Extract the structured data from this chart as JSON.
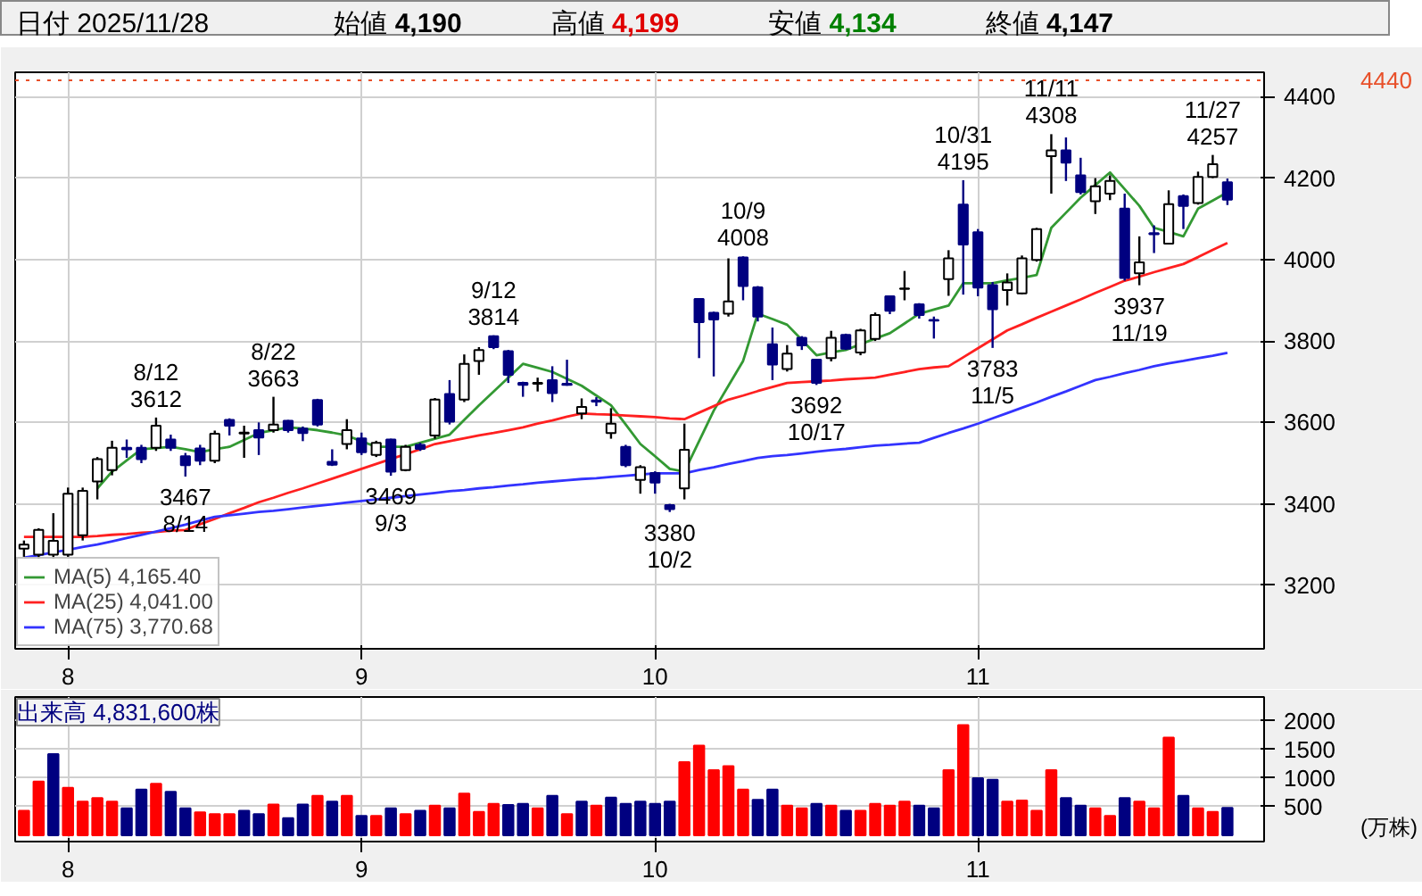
{
  "chart_data": [
    {
      "type": "candlestick",
      "title": "日付 2025/11/28",
      "annotations": [
        "始値 4,190",
        "高値 4,199",
        "安値 4,134",
        "終値 4,147",
        {
          "text": "8/12\n3612",
          "y": 3612
        },
        {
          "text": "3467\n8/14",
          "y": 3467
        },
        {
          "text": "8/22\n3663",
          "y": 3663
        },
        {
          "text": "3469\n9/3",
          "y": 3469
        },
        {
          "text": "9/12\n3814",
          "y": 3814
        },
        {
          "text": "3380\n10/2",
          "y": 3380
        },
        {
          "text": "10/9\n4008",
          "y": 4008
        },
        {
          "text": "3692\n10/17",
          "y": 3692
        },
        {
          "text": "10/31\n4195",
          "y": 4195
        },
        {
          "text": "3783\n11/5",
          "y": 3783
        },
        {
          "text": "11/11\n4308",
          "y": 4308
        },
        {
          "text": "3937\n11/19",
          "y": 3937
        },
        {
          "text": "11/27\n4257",
          "y": 4257
        }
      ],
      "categories": [
        null,
        null,
        null,
        "8",
        null,
        null,
        null,
        null,
        null,
        null,
        null,
        null,
        null,
        null,
        null,
        null,
        null,
        null,
        null,
        null,
        null,
        null,
        null,
        "9",
        null,
        null,
        null,
        null,
        null,
        null,
        null,
        null,
        null,
        null,
        null,
        null,
        null,
        null,
        null,
        null,
        null,
        null,
        null,
        "10",
        null,
        null,
        null,
        null,
        null,
        null,
        null,
        null,
        null,
        null,
        null,
        null,
        null,
        null,
        null,
        null,
        null,
        null,
        null,
        null,
        null,
        "11",
        null,
        null,
        null,
        null,
        null,
        null,
        null,
        null,
        null,
        null,
        null,
        null,
        null,
        null,
        null,
        null,
        null
      ],
      "ylim": [
        3044,
        4460
      ],
      "yticks": [
        3200,
        3400,
        3600,
        3800,
        4000,
        4200,
        4400
      ],
      "ohlc": [
        [
          3290,
          3310,
          3270,
          3300
        ],
        [
          3275,
          3340,
          3265,
          3336
        ],
        [
          3275,
          3377,
          3265,
          3309
        ],
        [
          3275,
          3440,
          3270,
          3425
        ],
        [
          3323,
          3440,
          3310,
          3432
        ],
        [
          3455,
          3515,
          3411,
          3510
        ],
        [
          3483,
          3555,
          3470,
          3538
        ],
        [
          3538,
          3558,
          3513,
          3534
        ],
        [
          3538,
          3545,
          3500,
          3510
        ],
        [
          3538,
          3612,
          3530,
          3592
        ],
        [
          3558,
          3570,
          3530,
          3538
        ],
        [
          3517,
          3525,
          3467,
          3495
        ],
        [
          3536,
          3545,
          3495,
          3506
        ],
        [
          3506,
          3580,
          3500,
          3572
        ],
        [
          3606,
          3610,
          3568,
          3592
        ],
        [
          3573,
          3592,
          3513,
          3575
        ],
        [
          3581,
          3600,
          3520,
          3563
        ],
        [
          3581,
          3663,
          3575,
          3595
        ],
        [
          3604,
          3606,
          3575,
          3581
        ],
        [
          3585,
          3590,
          3554,
          3574
        ],
        [
          3655,
          3658,
          3590,
          3595
        ],
        [
          3503,
          3534,
          3493,
          3496
        ],
        [
          3547,
          3608,
          3534,
          3581
        ],
        [
          3561,
          3575,
          3520,
          3527
        ],
        [
          3520,
          3555,
          3515,
          3550
        ],
        [
          3558,
          3560,
          3469,
          3479
        ],
        [
          3483,
          3545,
          3480,
          3540
        ],
        [
          3545,
          3550,
          3530,
          3535
        ],
        [
          3568,
          3660,
          3560,
          3656
        ],
        [
          3670,
          3704,
          3595,
          3602
        ],
        [
          3656,
          3767,
          3650,
          3744
        ],
        [
          3751,
          3785,
          3717,
          3778
        ],
        [
          3812,
          3814,
          3780,
          3785
        ],
        [
          3775,
          3778,
          3697,
          3717
        ],
        [
          3697,
          3700,
          3663,
          3692
        ],
        [
          3695,
          3710,
          3676,
          3697
        ],
        [
          3704,
          3738,
          3650,
          3672
        ],
        [
          3695,
          3754,
          3690,
          3692
        ],
        [
          3622,
          3659,
          3608,
          3638
        ],
        [
          3654,
          3662,
          3640,
          3651
        ],
        [
          3574,
          3635,
          3560,
          3597
        ],
        [
          3540,
          3545,
          3490,
          3495
        ],
        [
          3459,
          3495,
          3425,
          3490
        ],
        [
          3476,
          3480,
          3425,
          3452
        ],
        [
          3397,
          3400,
          3380,
          3387
        ],
        [
          3438,
          3597,
          3411,
          3533
        ],
        [
          3903,
          3905,
          3758,
          3846
        ],
        [
          3869,
          3872,
          3713,
          3853
        ],
        [
          3867,
          4003,
          3860,
          3897
        ],
        [
          4005,
          4008,
          3900,
          3935
        ],
        [
          3932,
          3935,
          3848,
          3860
        ],
        [
          3792,
          3833,
          3704,
          3742
        ],
        [
          3731,
          3790,
          3725,
          3769
        ],
        [
          3808,
          3812,
          3778,
          3789
        ],
        [
          3754,
          3756,
          3692,
          3697
        ],
        [
          3758,
          3825,
          3750,
          3808
        ],
        [
          3815,
          3818,
          3778,
          3781
        ],
        [
          3772,
          3830,
          3765,
          3826
        ],
        [
          3805,
          3870,
          3800,
          3864
        ],
        [
          3910,
          3912,
          3866,
          3874
        ],
        [
          3928,
          3972,
          3900,
          3929
        ],
        [
          3890,
          3893,
          3855,
          3864
        ],
        [
          3852,
          3860,
          3806,
          3850
        ],
        [
          3952,
          4023,
          3911,
          4003
        ],
        [
          4135,
          4195,
          3914,
          4037
        ],
        [
          4067,
          4075,
          3910,
          3931
        ],
        [
          3937,
          3945,
          3783,
          3878
        ],
        [
          3925,
          3966,
          3887,
          3944
        ],
        [
          3917,
          4010,
          3915,
          4003
        ],
        [
          3999,
          4078,
          3995,
          4075
        ],
        [
          4254,
          4308,
          4162,
          4268
        ],
        [
          4268,
          4300,
          4193,
          4238
        ],
        [
          4207,
          4250,
          4160,
          4166
        ],
        [
          4143,
          4200,
          4112,
          4180
        ],
        [
          4162,
          4207,
          4146,
          4193
        ],
        [
          4125,
          4162,
          3948,
          3955
        ],
        [
          3966,
          4057,
          3937,
          3993
        ],
        [
          4065,
          4084,
          4016,
          4062
        ],
        [
          4039,
          4170,
          4037,
          4136
        ],
        [
          4156,
          4160,
          4075,
          4132
        ],
        [
          4139,
          4216,
          4135,
          4203
        ],
        [
          4203,
          4257,
          4200,
          4234
        ],
        [
          4190,
          4199,
          4134,
          4147
        ]
      ],
      "colors": [
        "#ffffff",
        "#ffffff",
        "#ffffff",
        "#ffffff",
        "#ffffff",
        "#ffffff",
        "#ffffff",
        "#000080",
        "#000080",
        "#ffffff",
        "#000080",
        "#000080",
        "#000080",
        "#ffffff",
        "#000080",
        "#ffffff",
        "#000080",
        "#ffffff",
        "#000080",
        "#000080",
        "#000080",
        "#000080",
        "#ffffff",
        "#000080",
        "#ffffff",
        "#000080",
        "#ffffff",
        "#000080",
        "#ffffff",
        "#000080",
        "#ffffff",
        "#ffffff",
        "#000080",
        "#000080",
        "#000080",
        "#ffffff",
        "#000080",
        "#000080",
        "#ffffff",
        "#000080",
        "#ffffff",
        "#000080",
        "#ffffff",
        "#000080",
        "#000080",
        "#ffffff",
        "#000080",
        "#000080",
        "#ffffff",
        "#000080",
        "#000080",
        "#000080",
        "#ffffff",
        "#000080",
        "#000080",
        "#ffffff",
        "#000080",
        "#ffffff",
        "#ffffff",
        "#000080",
        "#ffffff",
        "#000080",
        "#000080",
        "#ffffff",
        "#000080",
        "#000080",
        "#000080",
        "#ffffff",
        "#ffffff",
        "#ffffff",
        "#ffffff",
        "#000080",
        "#000080",
        "#ffffff",
        "#ffffff",
        "#000080",
        "#ffffff",
        "#000080",
        "#ffffff",
        "#000080",
        "#ffffff",
        "#ffffff",
        "#000080"
      ],
      "series": [
        {
          "type": "line",
          "name": "MA(5) 4,165.40",
          "color": "#339933",
          "values": [
            null,
            null,
            null,
            null,
            null,
            3438,
            3479,
            3507,
            3534,
            3537,
            3540,
            3534,
            3527,
            3534,
            3540,
            3557,
            3574,
            3581,
            3588,
            3585,
            3581,
            3575,
            3568,
            3554,
            3540,
            3540,
            3540,
            3550,
            3560,
            3570,
            3606,
            3642,
            3676,
            3710,
            3744,
            3734,
            3724,
            3707,
            3690,
            3666,
            3642,
            3595,
            3547,
            3517,
            3486,
            3479,
            3554,
            3629,
            3690,
            3751,
            3867,
            3854,
            3840,
            3803,
            3765,
            3772,
            3778,
            3792,
            3806,
            3819,
            3843,
            3867,
            3877,
            3887,
            3942,
            3942,
            3942,
            3949,
            3955,
            3962,
            4078,
            4115,
            4152,
            4183,
            4214,
            4173,
            4132,
            4078,
            4068,
            4057,
            4125,
            4145,
            4165
          ]
        },
        {
          "type": "line",
          "name": "MA(25) 4,041.00",
          "color": "#ff2020",
          "values": [
            3319,
            3319,
            3319,
            3319,
            3319,
            3321,
            3324,
            3326,
            3329,
            3331,
            3334,
            3336,
            3350,
            3363,
            3377,
            3390,
            3404,
            3415,
            3427,
            3438,
            3450,
            3462,
            3474,
            3486,
            3498,
            3510,
            3522,
            3534,
            3547,
            3554,
            3561,
            3568,
            3574,
            3581,
            3588,
            3597,
            3605,
            3614,
            3622,
            3620,
            3619,
            3617,
            3615,
            3613,
            3610,
            3608,
            3624,
            3640,
            3656,
            3666,
            3677,
            3687,
            3697,
            3699,
            3701,
            3703,
            3706,
            3708,
            3710,
            3717,
            3724,
            3731,
            3735,
            3738,
            3760,
            3782,
            3804,
            3826,
            3841,
            3857,
            3872,
            3887,
            3902,
            3918,
            3933,
            3948,
            3958,
            3969,
            3979,
            3989,
            4006,
            4024,
            4041
          ]
        },
        {
          "type": "line",
          "name": "MA(75) 3,770.68",
          "color": "#3333ff",
          "values": [
            3268,
            3274,
            3281,
            3287,
            3294,
            3300,
            3308,
            3316,
            3324,
            3332,
            3340,
            3349,
            3359,
            3368,
            3372,
            3376,
            3380,
            3383,
            3387,
            3391,
            3395,
            3399,
            3403,
            3407,
            3411,
            3415,
            3419,
            3423,
            3427,
            3431,
            3434,
            3438,
            3441,
            3445,
            3448,
            3452,
            3455,
            3458,
            3461,
            3463,
            3466,
            3469,
            3472,
            3475,
            3475,
            3475,
            3483,
            3490,
            3498,
            3505,
            3513,
            3517,
            3520,
            3524,
            3528,
            3532,
            3535,
            3539,
            3543,
            3545,
            3548,
            3550,
            3562,
            3574,
            3585,
            3597,
            3610,
            3623,
            3636,
            3649,
            3663,
            3676,
            3690,
            3704,
            3712,
            3721,
            3729,
            3738,
            3745,
            3751,
            3758,
            3764,
            3771
          ]
        }
      ],
      "ref_lines": [
        {
          "axis": "y",
          "value": 4440,
          "label": "4440",
          "color": "#e8502a",
          "line_style": "dotted"
        }
      ],
      "grid": true,
      "legend": "bottom left"
    },
    {
      "type": "bar",
      "ylabel": "(万株)",
      "annotations": [
        "出来高 4,831,600株"
      ],
      "categories": [
        null,
        null,
        null,
        "8",
        null,
        null,
        null,
        null,
        null,
        null,
        null,
        null,
        null,
        null,
        null,
        null,
        null,
        null,
        null,
        null,
        null,
        null,
        null,
        "9",
        null,
        null,
        null,
        null,
        null,
        null,
        null,
        null,
        null,
        null,
        null,
        null,
        null,
        null,
        null,
        null,
        null,
        null,
        null,
        "10",
        null,
        null,
        null,
        null,
        null,
        null,
        null,
        null,
        null,
        null,
        null,
        null,
        null,
        null,
        null,
        null,
        null,
        null,
        null,
        null,
        null,
        "11",
        null,
        null,
        null,
        null,
        null,
        null,
        null,
        null,
        null,
        null,
        null,
        null,
        null,
        null,
        null,
        null,
        null
      ],
      "ylim": [
        -110,
        2420
      ],
      "yticks": [
        500,
        1000,
        1500,
        2000
      ],
      "values": [
        430,
        940,
        1420,
        830,
        590,
        650,
        590,
        470,
        800,
        900,
        760,
        470,
        400,
        370,
        370,
        430,
        370,
        540,
        300,
        540,
        690,
        590,
        690,
        340,
        340,
        470,
        370,
        430,
        520,
        470,
        730,
        410,
        550,
        530,
        550,
        470,
        690,
        370,
        590,
        520,
        660,
        550,
        590,
        550,
        590,
        1280,
        1570,
        1140,
        1210,
        800,
        620,
        800,
        520,
        470,
        550,
        520,
        430,
        430,
        550,
        520,
        590,
        520,
        470,
        1140,
        1930,
        1000,
        970,
        590,
        610,
        430,
        1140,
        650,
        520,
        470,
        340,
        650,
        590,
        470,
        1710,
        690,
        470,
        410,
        480
      ],
      "colors": [
        "#ff0000",
        "#ff0000",
        "#000080",
        "#ff0000",
        "#ff0000",
        "#ff0000",
        "#ff0000",
        "#000080",
        "#000080",
        "#ff0000",
        "#000080",
        "#000080",
        "#ff0000",
        "#ff0000",
        "#ff0000",
        "#000080",
        "#000080",
        "#ff0000",
        "#000080",
        "#000080",
        "#ff0000",
        "#000080",
        "#ff0000",
        "#000080",
        "#ff0000",
        "#000080",
        "#ff0000",
        "#000080",
        "#ff0000",
        "#000080",
        "#ff0000",
        "#ff0000",
        "#ff0000",
        "#000080",
        "#000080",
        "#ff0000",
        "#000080",
        "#ff0000",
        "#000080",
        "#ff0000",
        "#000080",
        "#000080",
        "#000080",
        "#000080",
        "#000080",
        "#ff0000",
        "#ff0000",
        "#ff0000",
        "#ff0000",
        "#ff0000",
        "#000080",
        "#000080",
        "#ff0000",
        "#ff0000",
        "#000080",
        "#ff0000",
        "#000080",
        "#ff0000",
        "#ff0000",
        "#ff0000",
        "#ff0000",
        "#000080",
        "#000080",
        "#ff0000",
        "#ff0000",
        "#000080",
        "#000080",
        "#ff0000",
        "#ff0000",
        "#ff0000",
        "#ff0000",
        "#000080",
        "#000080",
        "#ff0000",
        "#ff0000",
        "#000080",
        "#ff0000",
        "#ff0000",
        "#ff0000",
        "#000080",
        "#ff0000",
        "#ff0000",
        "#000080"
      ],
      "grid": true
    }
  ]
}
